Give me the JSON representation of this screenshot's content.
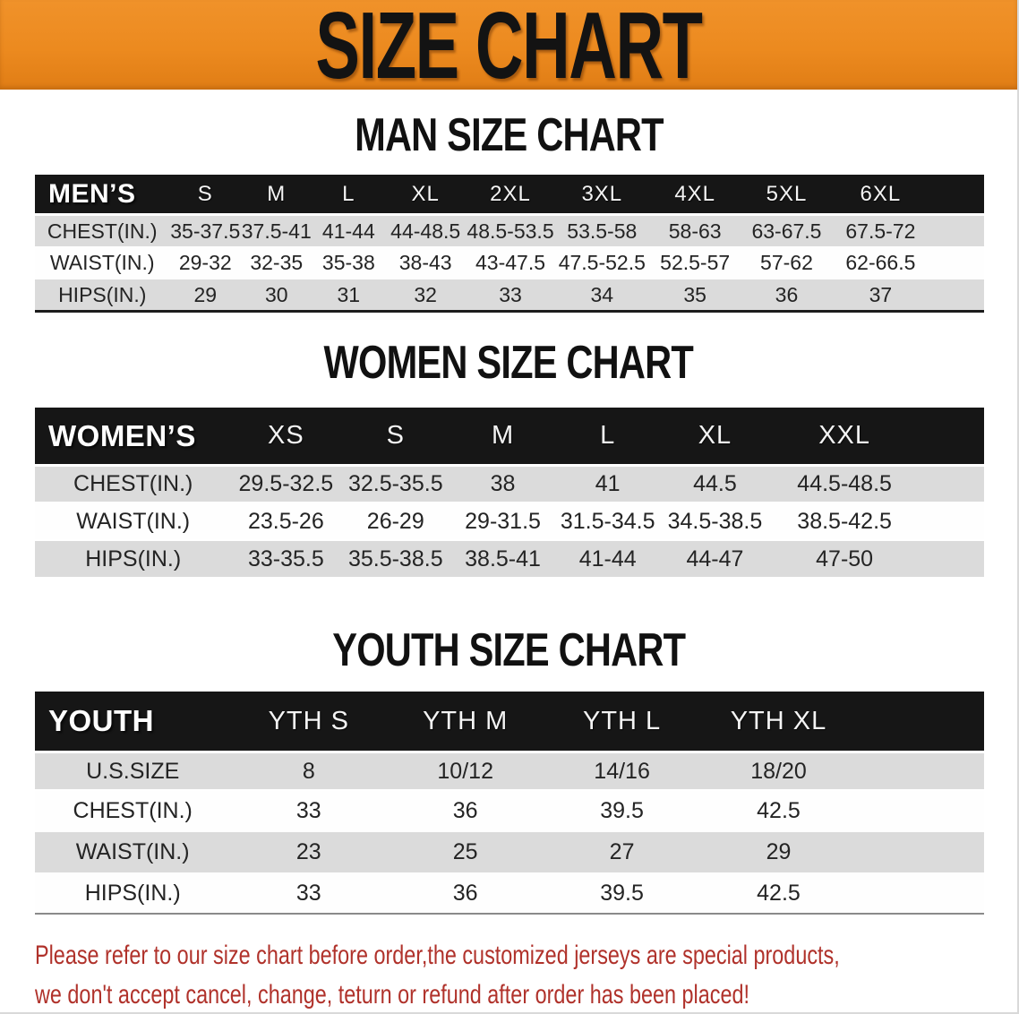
{
  "banner": {
    "title": "SIZE CHART"
  },
  "headings": {
    "men": "MAN SIZE CHART",
    "women": "WOMEN SIZE CHART",
    "youth": "YOUTH SIZE CHART"
  },
  "tables": {
    "men": {
      "label": "MEN’S",
      "columns": [
        "S",
        "M",
        "L",
        "XL",
        "2XL",
        "3XL",
        "4XL",
        "5XL",
        "6XL"
      ],
      "rows": [
        {
          "label": "CHEST(IN.)",
          "values": [
            "35-37.5",
            "37.5-41",
            "41-44",
            "44-48.5",
            "48.5-53.5",
            "53.5-58",
            "58-63",
            "63-67.5",
            "67.5-72"
          ]
        },
        {
          "label": "WAIST(IN.)",
          "values": [
            "29-32",
            "32-35",
            "35-38",
            "38-43",
            "43-47.5",
            "47.5-52.5",
            "52.5-57",
            "57-62",
            "62-66.5"
          ]
        },
        {
          "label": "HIPS(IN.)",
          "values": [
            "29",
            "30",
            "31",
            "32",
            "33",
            "34",
            "35",
            "36",
            "37"
          ]
        }
      ]
    },
    "women": {
      "label": "WOMEN’S",
      "columns": [
        "XS",
        "S",
        "M",
        "L",
        "XL",
        "XXL"
      ],
      "rows": [
        {
          "label": "CHEST(IN.)",
          "values": [
            "29.5-32.5",
            "32.5-35.5",
            "38",
            "41",
            "44.5",
            "44.5-48.5"
          ]
        },
        {
          "label": "WAIST(IN.)",
          "values": [
            "23.5-26",
            "26-29",
            "29-31.5",
            "31.5-34.5",
            "34.5-38.5",
            "38.5-42.5"
          ]
        },
        {
          "label": "HIPS(IN.)",
          "values": [
            "33-35.5",
            "35.5-38.5",
            "38.5-41",
            "41-44",
            "44-47",
            "47-50"
          ]
        }
      ]
    },
    "youth": {
      "label": "YOUTH",
      "columns": [
        "YTH S",
        "YTH M",
        "YTH L",
        "YTH XL"
      ],
      "rows": [
        {
          "label": "U.S.SIZE",
          "values": [
            "8",
            "10/12",
            "14/16",
            "18/20"
          ]
        },
        {
          "label": "CHEST(IN.)",
          "values": [
            "33",
            "36",
            "39.5",
            "42.5"
          ]
        },
        {
          "label": "WAIST(IN.)",
          "values": [
            "23",
            "25",
            "27",
            "29"
          ]
        },
        {
          "label": "HIPS(IN.)",
          "values": [
            "33",
            "36",
            "39.5",
            "42.5"
          ]
        }
      ]
    }
  },
  "disclaimer": {
    "line1": "Please refer to our size chart before order,the customized jerseys are special products,",
    "line2": "we don't accept cancel, change, teturn or refund after order has been placed!"
  },
  "colors": {
    "banner_orange": "#EC8A1F",
    "banner_orange_light": "#F0922A",
    "banner_orange_dark": "#E07D15",
    "title_black": "#131313",
    "header_black": "#161616",
    "row_gray": "#DBDBDB",
    "row_white": "#FEFEFE",
    "disclaimer_red": "#B0322B"
  }
}
